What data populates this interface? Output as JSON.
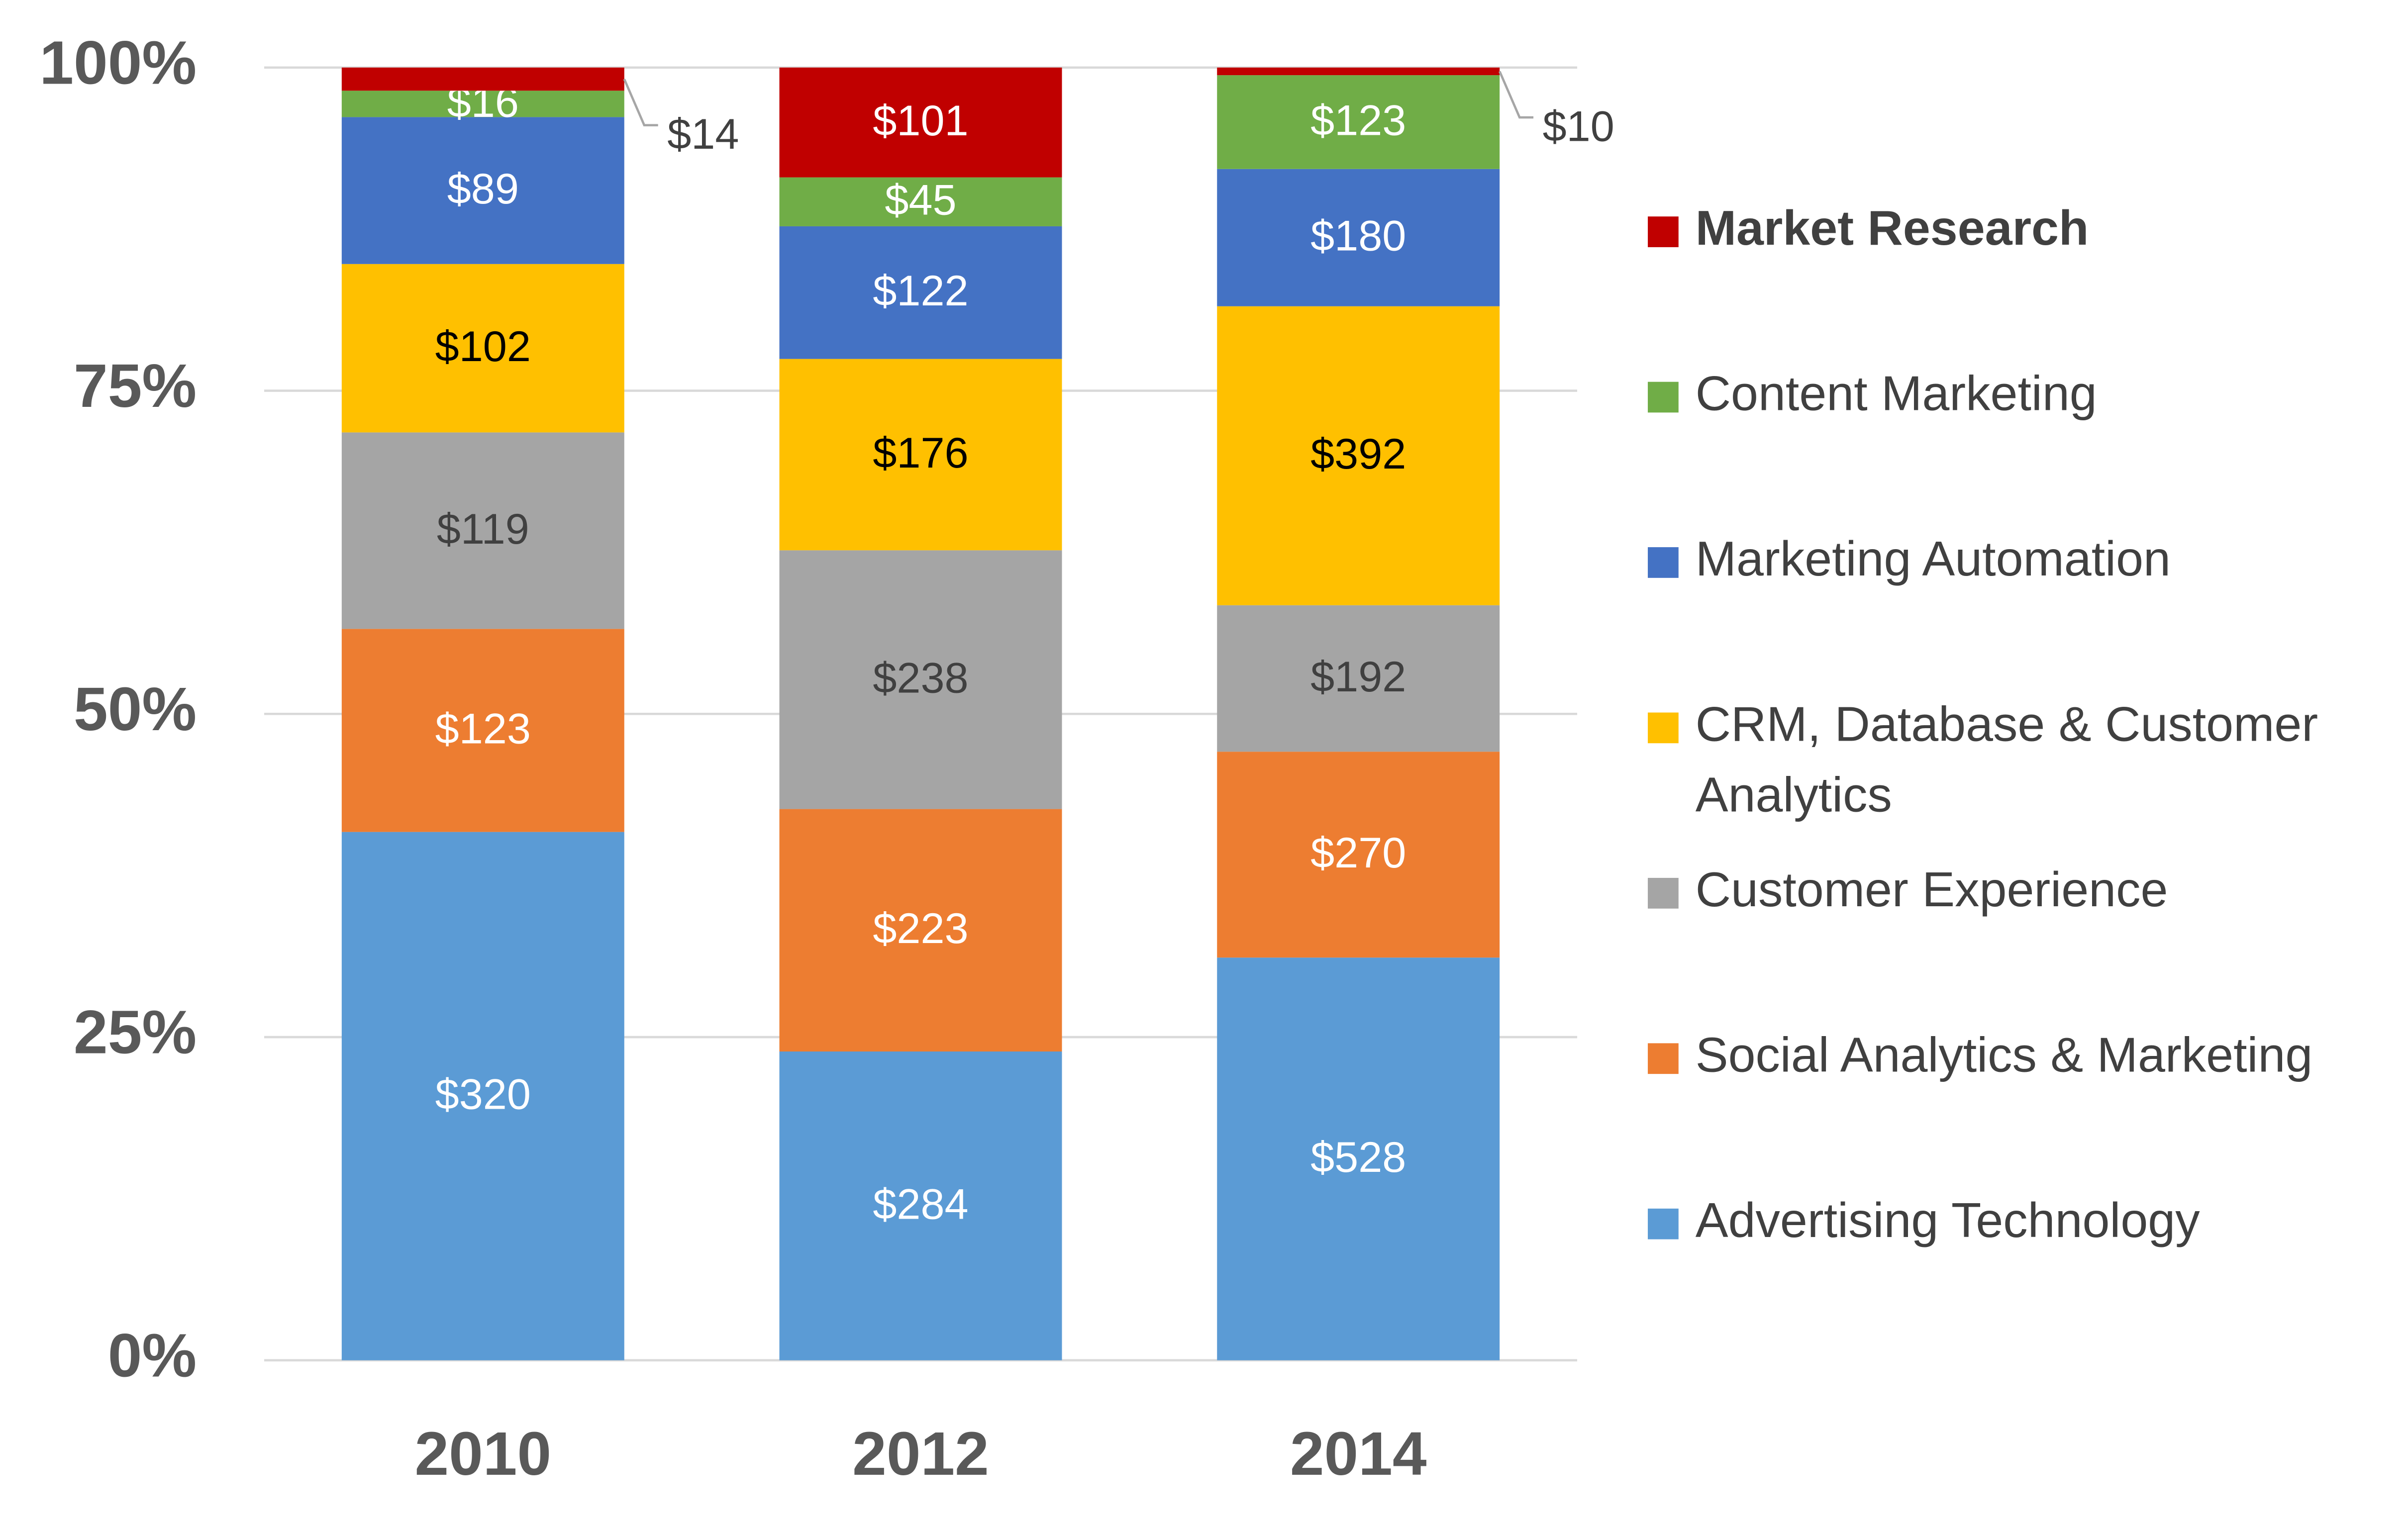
{
  "chart_data": {
    "type": "stacked_bar_percent",
    "categories": [
      "2010",
      "2012",
      "2014"
    ],
    "ylim": [
      0,
      100
    ],
    "yticks": [
      {
        "value": 0,
        "label": "0%"
      },
      {
        "value": 25,
        "label": "25%"
      },
      {
        "value": 50,
        "label": "50%"
      },
      {
        "value": 75,
        "label": "75%"
      },
      {
        "value": 100,
        "label": "100%"
      }
    ],
    "grid": true,
    "legend": "right",
    "series": [
      {
        "name": "Advertising Technology",
        "color": "#5b9bd5",
        "label_color": "#ffffff",
        "values": [
          320,
          284,
          528
        ],
        "value_labels": [
          "$320",
          "$284",
          "$528"
        ]
      },
      {
        "name": "Social Analytics & Marketing",
        "color": "#ed7d31",
        "label_color": "#ffffff",
        "values": [
          123,
          223,
          270
        ],
        "value_labels": [
          "$123",
          "$223",
          "$270"
        ]
      },
      {
        "name": "Customer Experience",
        "color": "#a5a5a5",
        "label_color": "#404040",
        "values": [
          119,
          238,
          192
        ],
        "value_labels": [
          "$119",
          "$238",
          "$192"
        ]
      },
      {
        "name": "CRM, Database & Customer Analytics",
        "color": "#ffc000",
        "label_color": "#000000",
        "values": [
          102,
          176,
          392
        ],
        "value_labels": [
          "$102",
          "$176",
          "$392"
        ]
      },
      {
        "name": "Marketing Automation",
        "color": "#4472c4",
        "label_color": "#ffffff",
        "values": [
          89,
          122,
          180
        ],
        "value_labels": [
          "$89",
          "$122",
          "$180"
        ]
      },
      {
        "name": "Content Marketing",
        "color": "#70ad47",
        "label_color": "#ffffff",
        "values": [
          16,
          45,
          123
        ],
        "value_labels": [
          "$16",
          "$45",
          "$123"
        ]
      },
      {
        "name": "Market Research",
        "color": "#c00000",
        "label_color": "#ffffff",
        "values": [
          14,
          101,
          10
        ],
        "value_labels": [
          "$14",
          "$101",
          "$10"
        ]
      }
    ]
  }
}
